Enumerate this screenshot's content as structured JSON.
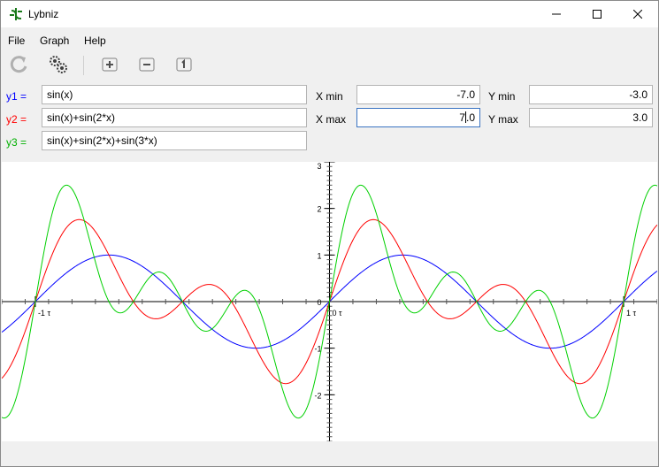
{
  "window": {
    "title": "Lybniz"
  },
  "menu": {
    "items": [
      "File",
      "Graph",
      "Help"
    ]
  },
  "functions": [
    {
      "label": "y1 =",
      "expr": "sin(x)",
      "color": "#0000ff"
    },
    {
      "label": "y2 =",
      "expr": "sin(x)+sin(2*x)",
      "color": "#ff0000"
    },
    {
      "label": "y3 =",
      "expr": "sin(x)+sin(2*x)+sin(3*x)",
      "color": "#00b000"
    }
  ],
  "range": {
    "xmin_label": "X min",
    "xmin": "-7.0",
    "xmax_label": "X max",
    "xmax": "7.0",
    "ymin_label": "Y min",
    "ymin": "-3.0",
    "ymax_label": "Y max",
    "ymax": "3.0"
  },
  "chart_data": {
    "type": "line",
    "xlim": [
      -7,
      7
    ],
    "ylim": [
      -3,
      3
    ],
    "grid": false,
    "x_tick_labels": [
      "-1 τ",
      "0 τ",
      "1 τ"
    ],
    "y_tick_labels": [
      "3",
      "2",
      "1",
      "0",
      "-1",
      "-2"
    ],
    "series": [
      {
        "expr": "sin(x)",
        "color": "#0000ff"
      },
      {
        "expr": "sin(x)+sin(2*x)",
        "color": "#ff0000"
      },
      {
        "expr": "sin(x)+sin(2*x)+sin(3*x)",
        "color": "#00d000"
      }
    ]
  }
}
